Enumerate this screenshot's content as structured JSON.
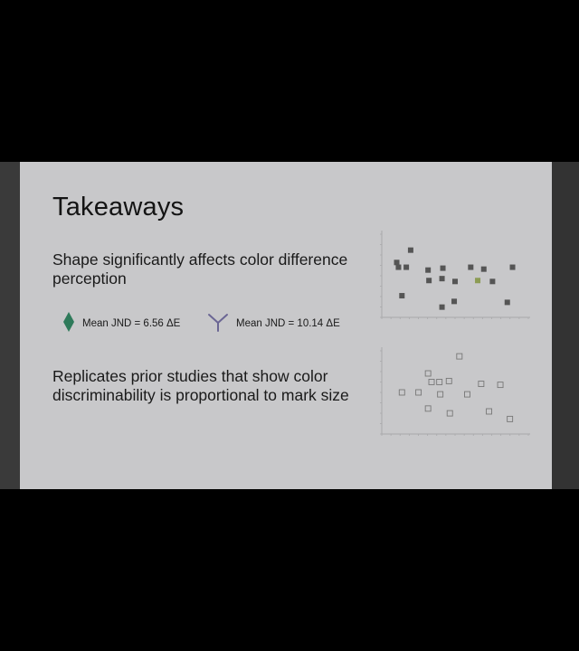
{
  "slide": {
    "title": "Takeaways",
    "point1": "Shape significantly affects color difference perception",
    "point2": "Replicates prior studies that show color discriminability is proportional to mark size",
    "legend": [
      {
        "shape": "diamond",
        "label": "Mean JND = 6.56 ΔE",
        "color": "#2e7a5a"
      },
      {
        "shape": "tri-branch",
        "label": "Mean JND = 10.14 ΔE",
        "color": "#6b6694"
      }
    ]
  },
  "colors": {
    "slide_bg": "#c8c8ca",
    "frame_bg": "#000000",
    "text": "#141414",
    "filled_square": "#555555",
    "highlight_square": "#8c9c54",
    "hollow_square": "#777777"
  },
  "chart_data": [
    {
      "type": "scatter",
      "marker": "filled-square",
      "points": [
        [
          13,
          14
        ],
        [
          29,
          27
        ],
        [
          15,
          9
        ],
        [
          24,
          9
        ],
        [
          49,
          6
        ],
        [
          66,
          8
        ],
        [
          98,
          9
        ],
        [
          113,
          7
        ],
        [
          146,
          9
        ],
        [
          50,
          -5
        ],
        [
          65,
          -3
        ],
        [
          80,
          -6
        ],
        [
          106,
          -5
        ],
        [
          123,
          -6
        ],
        [
          19,
          -21
        ],
        [
          79,
          -27
        ],
        [
          65,
          -33
        ],
        [
          140,
          -28
        ]
      ],
      "highlight_point": [
        106,
        -5
      ],
      "xlim": [
        0,
        160
      ],
      "ylim": [
        -40,
        40
      ],
      "grid": false
    },
    {
      "type": "scatter",
      "marker": "hollow-square",
      "points": [
        [
          85,
          38
        ],
        [
          49,
          20
        ],
        [
          53,
          11
        ],
        [
          62,
          11
        ],
        [
          73,
          12
        ],
        [
          110,
          9
        ],
        [
          132,
          8
        ],
        [
          19,
          0
        ],
        [
          38,
          0
        ],
        [
          63,
          -2
        ],
        [
          94,
          -2
        ],
        [
          49,
          -17
        ],
        [
          74,
          -22
        ],
        [
          119,
          -20
        ],
        [
          143,
          -28
        ]
      ],
      "xlim": [
        0,
        160
      ],
      "ylim": [
        -40,
        40
      ],
      "grid": false
    }
  ]
}
